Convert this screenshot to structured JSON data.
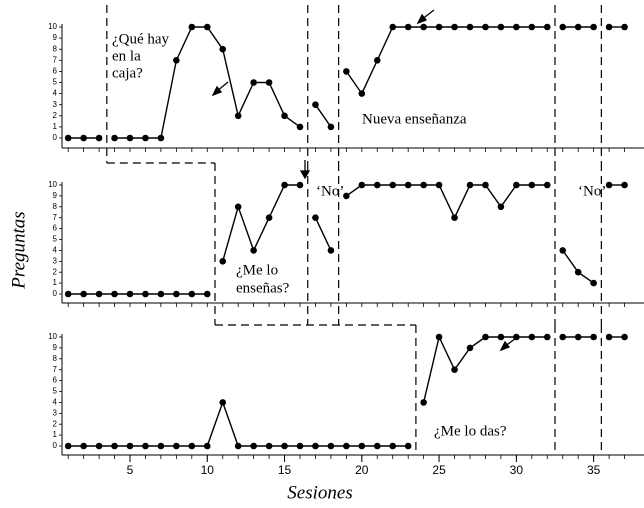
{
  "chart_data": [
    {
      "type": "line",
      "color": "#000000",
      "x": [
        1,
        2,
        3,
        4,
        5,
        6,
        7,
        8,
        9,
        10,
        11,
        12,
        13,
        14,
        15,
        16,
        17,
        18,
        19,
        20,
        21,
        22,
        23,
        24,
        25,
        26,
        27,
        28,
        29,
        30,
        31,
        32,
        33,
        34,
        35,
        36,
        37
      ],
      "values": [
        0,
        0,
        0,
        0,
        0,
        0,
        0,
        7,
        10,
        10,
        8,
        2,
        5,
        5,
        2,
        1,
        3,
        1,
        6,
        4,
        7,
        10,
        10,
        10,
        10,
        10,
        10,
        10,
        10,
        10,
        10,
        10,
        10,
        10,
        10,
        10,
        10
      ],
      "phase_lines": [
        3.5,
        16.5,
        18.5,
        32.5,
        35.5
      ],
      "xlim": [
        0.6,
        38
      ],
      "ylim": [
        0,
        10
      ],
      "yticks": [
        0,
        1,
        2,
        3,
        4,
        5,
        6,
        7,
        8,
        9,
        10
      ],
      "annotations": [
        "¿Qué hay",
        "en la",
        "caja?",
        "Nueva enseñanza"
      ]
    },
    {
      "type": "line",
      "color": "#000000",
      "x": [
        1,
        2,
        3,
        4,
        5,
        6,
        7,
        8,
        9,
        10,
        11,
        12,
        13,
        14,
        15,
        16,
        17,
        18,
        19,
        20,
        21,
        22,
        23,
        24,
        25,
        26,
        27,
        28,
        29,
        30,
        31,
        32,
        33,
        34,
        35,
        36,
        37
      ],
      "values": [
        0,
        0,
        0,
        0,
        0,
        0,
        0,
        0,
        0,
        0,
        3,
        8,
        4,
        7,
        10,
        10,
        7,
        4,
        9,
        10,
        10,
        10,
        10,
        10,
        10,
        7,
        10,
        10,
        8,
        10,
        10,
        10,
        4,
        2,
        1,
        10,
        10
      ],
      "phase_lines": [
        10.5,
        16.5,
        18.5,
        32.5,
        35.5
      ],
      "xlim": [
        0.6,
        38
      ],
      "ylim": [
        0,
        10
      ],
      "yticks": [
        0,
        1,
        2,
        3,
        4,
        5,
        6,
        7,
        8,
        9,
        10
      ],
      "ylabel": "Preguntas",
      "annotations": [
        "‘No’",
        "‘No’",
        "¿Me lo",
        "enseñas?"
      ]
    },
    {
      "type": "line",
      "color": "#000000",
      "x": [
        1,
        2,
        3,
        4,
        5,
        6,
        7,
        8,
        9,
        10,
        11,
        12,
        13,
        14,
        15,
        16,
        17,
        18,
        19,
        20,
        21,
        22,
        23,
        24,
        25,
        26,
        27,
        28,
        29,
        30,
        31,
        32,
        33,
        34,
        35,
        36,
        37
      ],
      "values": [
        0,
        0,
        0,
        0,
        0,
        0,
        0,
        0,
        0,
        0,
        4,
        0,
        0,
        0,
        0,
        0,
        0,
        0,
        0,
        0,
        0,
        0,
        0,
        4,
        10,
        7,
        9,
        10,
        10,
        10,
        10,
        10,
        10,
        10,
        10,
        10,
        10
      ],
      "phase_lines": [
        23.5,
        32.5,
        35.5
      ],
      "xlim": [
        0.6,
        38
      ],
      "ylim": [
        0,
        10
      ],
      "yticks": [
        0,
        1,
        2,
        3,
        4,
        5,
        6,
        7,
        8,
        9,
        10
      ],
      "xticks": [
        5,
        10,
        15,
        20,
        25,
        30,
        35
      ],
      "xlabel": "Sesiones",
      "annotations": [
        "¿Me lo das?"
      ]
    }
  ]
}
